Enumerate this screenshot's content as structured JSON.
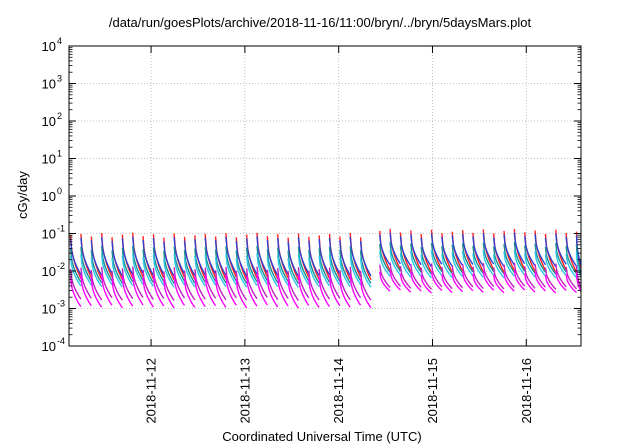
{
  "chart_data": {
    "type": "line",
    "title": "/data/run/goesPlots/archive/2018-11-16/11:00/bryn/../bryn/5daysMars.plot",
    "xlabel": "Coordinated Universal Time (UTC)",
    "ylabel": "cGy/day",
    "yscale": "log",
    "ylim_exp": [
      -4,
      4
    ],
    "y_ticks": [
      {
        "base": "10",
        "exp": "-4"
      },
      {
        "base": "10",
        "exp": "-3"
      },
      {
        "base": "10",
        "exp": "-2"
      },
      {
        "base": "10",
        "exp": "-1"
      },
      {
        "base": "10",
        "exp": "0"
      },
      {
        "base": "10",
        "exp": "1"
      },
      {
        "base": "10",
        "exp": "2"
      },
      {
        "base": "10",
        "exp": "3"
      },
      {
        "base": "10",
        "exp": "4"
      }
    ],
    "xlim": [
      "2018-11-11 03:00",
      "2018-11-16 14:00"
    ],
    "x_ticks": [
      "2018-11-12",
      "2018-11-13",
      "2018-11-14",
      "2018-11-15",
      "2018-11-16"
    ],
    "grid": true,
    "legend": "none",
    "sawtooth": {
      "segment_hours": 2.65,
      "gap_start": "2018-11-14 09:30",
      "gap_end": "2018-11-14 10:30"
    },
    "series": [
      {
        "color": "#ff2020",
        "peak_log": -1.05,
        "trough_log": -2.2,
        "peak_log_late": -0.95,
        "trough_log_late": -2.0
      },
      {
        "color": "#2e3fd0",
        "peak_log": -1.15,
        "trough_log": -2.1,
        "peak_log_late": -1.05,
        "trough_log_late": -1.85
      },
      {
        "color": "#1a8f8f",
        "peak_log": -1.4,
        "trough_log": -2.3,
        "peak_log_late": -1.3,
        "trough_log_late": -2.05
      },
      {
        "color": "#29c6e8",
        "peak_log": -1.6,
        "trough_log": -2.4,
        "peak_log_late": -1.5,
        "trough_log_late": -2.15
      },
      {
        "color": "#c020c0",
        "peak_log": -1.95,
        "trough_log": -2.75,
        "peak_log_late": -1.85,
        "trough_log_late": -2.45
      },
      {
        "color": "#ff00ff",
        "peak_log": -2.15,
        "trough_log": -2.95,
        "peak_log_late": -2.05,
        "trough_log_late": -2.55
      }
    ]
  }
}
